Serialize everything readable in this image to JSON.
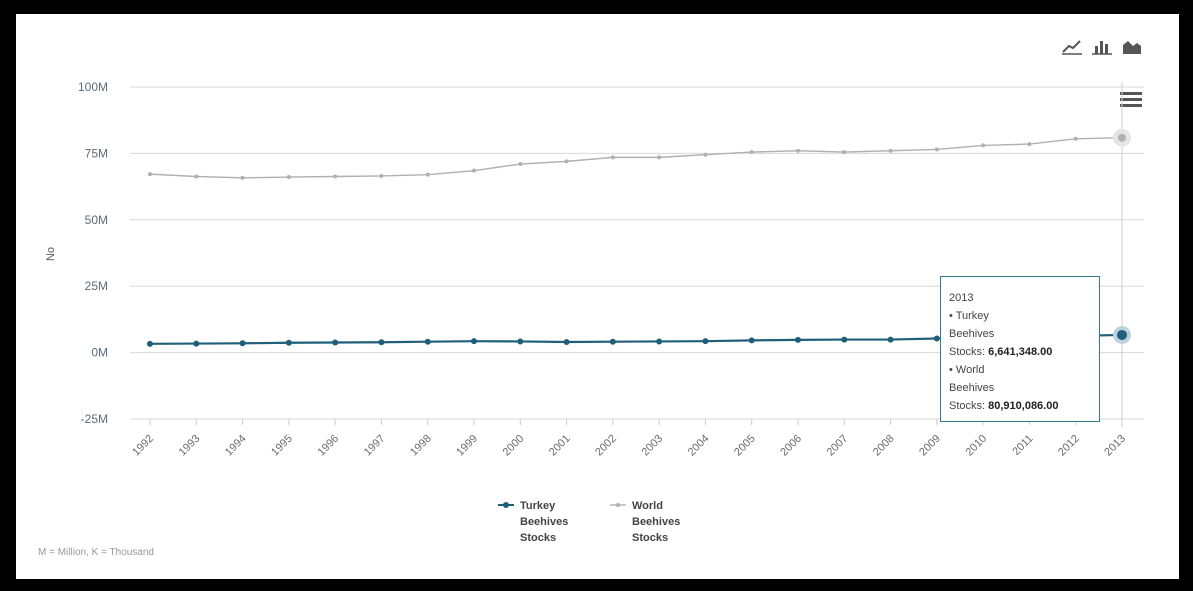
{
  "chart_data": {
    "type": "line",
    "ylabel": "No",
    "yticks": [
      "100M",
      "75M",
      "50M",
      "25M",
      "0M",
      "-25M"
    ],
    "ytick_values": [
      100000000,
      75000000,
      50000000,
      25000000,
      0,
      -25000000
    ],
    "ylim": [
      -25000000,
      100000000
    ],
    "x": [
      "1992",
      "1993",
      "1994",
      "1995",
      "1996",
      "1997",
      "1998",
      "1999",
      "2000",
      "2001",
      "2002",
      "2003",
      "2004",
      "2005",
      "2006",
      "2007",
      "2008",
      "2009",
      "2010",
      "2011",
      "2012",
      "2013"
    ],
    "series": [
      {
        "name": "Turkey Beehives Stocks",
        "color": "#1f5f7a",
        "values": [
          3300000,
          3400000,
          3500000,
          3700000,
          3800000,
          3900000,
          4100000,
          4300000,
          4200000,
          4000000,
          4100000,
          4200000,
          4300000,
          4600000,
          4800000,
          4900000,
          4900000,
          5300000,
          5600000,
          6000000,
          6300000,
          6641348
        ]
      },
      {
        "name": "World Beehives Stocks",
        "color": "#b0b0b0",
        "values": [
          67200000,
          66300000,
          65800000,
          66100000,
          66300000,
          66500000,
          67000000,
          68500000,
          71000000,
          72000000,
          73500000,
          73500000,
          74500000,
          75500000,
          76000000,
          75500000,
          76000000,
          76500000,
          78000000,
          78500000,
          80500000,
          80910086
        ]
      }
    ],
    "grid": true,
    "legend": "bottom-center"
  },
  "tooltip": {
    "year": "2013",
    "series1_label_a": "• Turkey",
    "series1_label_b": "Beehives",
    "series1_label_c": "Stocks: ",
    "series1_value": "6,641,348.00",
    "series2_label_a": "• World",
    "series2_label_b": "Beehives",
    "series2_label_c": "Stocks: ",
    "series2_value": "80,910,086.00"
  },
  "legend_items": [
    {
      "line1": "Turkey",
      "line2": "Beehives",
      "line3": "Stocks"
    },
    {
      "line1": "World",
      "line2": "Beehives",
      "line3": "Stocks"
    }
  ],
  "footnote": "M = Million, K = Thousand",
  "toolbar_icons": [
    "line-chart-icon",
    "bar-chart-icon",
    "area-chart-icon"
  ],
  "menu_icon": "hamburger-menu-icon"
}
